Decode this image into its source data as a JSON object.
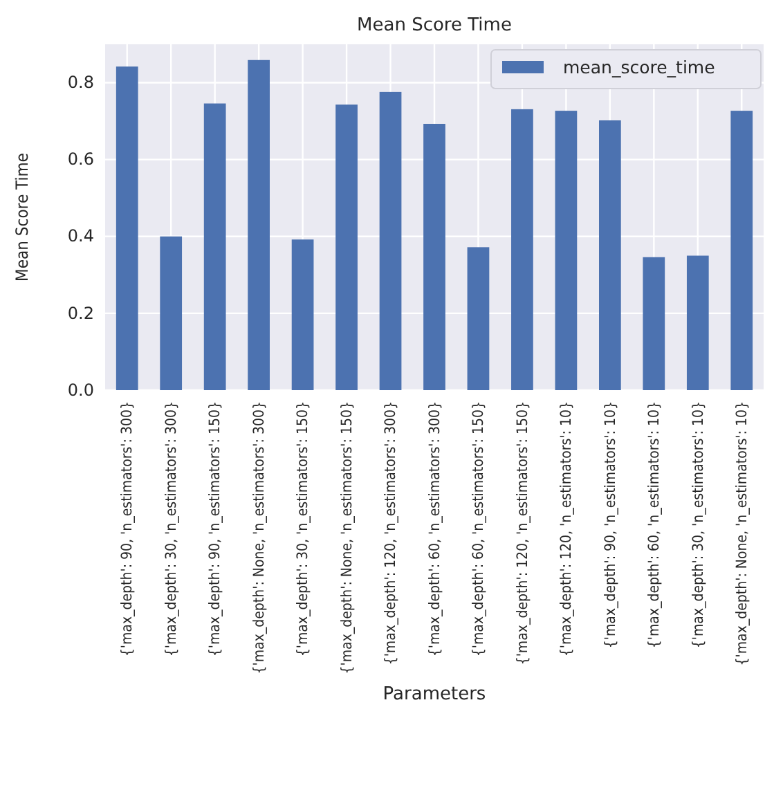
{
  "chart_data": {
    "type": "bar",
    "title": "Mean Score Time",
    "xlabel": "Parameters",
    "ylabel": "Mean Score Time",
    "categories": [
      "{'max_depth': 90, 'n_estimators': 300}",
      "{'max_depth': 30, 'n_estimators': 300}",
      "{'max_depth': 90, 'n_estimators': 150}",
      "{'max_depth': None, 'n_estimators': 300}",
      "{'max_depth': 30, 'n_estimators': 150}",
      "{'max_depth': None, 'n_estimators': 150}",
      "{'max_depth': 120, 'n_estimators': 300}",
      "{'max_depth': 60, 'n_estimators': 300}",
      "{'max_depth': 60, 'n_estimators': 150}",
      "{'max_depth': 120, 'n_estimators': 150}",
      "{'max_depth': 120, 'n_estimators': 10}",
      "{'max_depth': 90, 'n_estimators': 10}",
      "{'max_depth': 60, 'n_estimators': 10}",
      "{'max_depth': 30, 'n_estimators': 10}",
      "{'max_depth': None, 'n_estimators': 10}"
    ],
    "series": [
      {
        "name": "mean_score_time",
        "color": "#4c72b0",
        "values": [
          0.842,
          0.4,
          0.746,
          0.859,
          0.392,
          0.743,
          0.776,
          0.693,
          0.372,
          0.731,
          0.727,
          0.702,
          0.346,
          0.35,
          0.727
        ]
      }
    ],
    "ylim": [
      0,
      0.9
    ],
    "yticks": [
      {
        "value": 0,
        "label": "0.0"
      },
      0.2,
      0.4,
      0.6,
      0.8
    ],
    "grid": true,
    "legend": "top right"
  }
}
